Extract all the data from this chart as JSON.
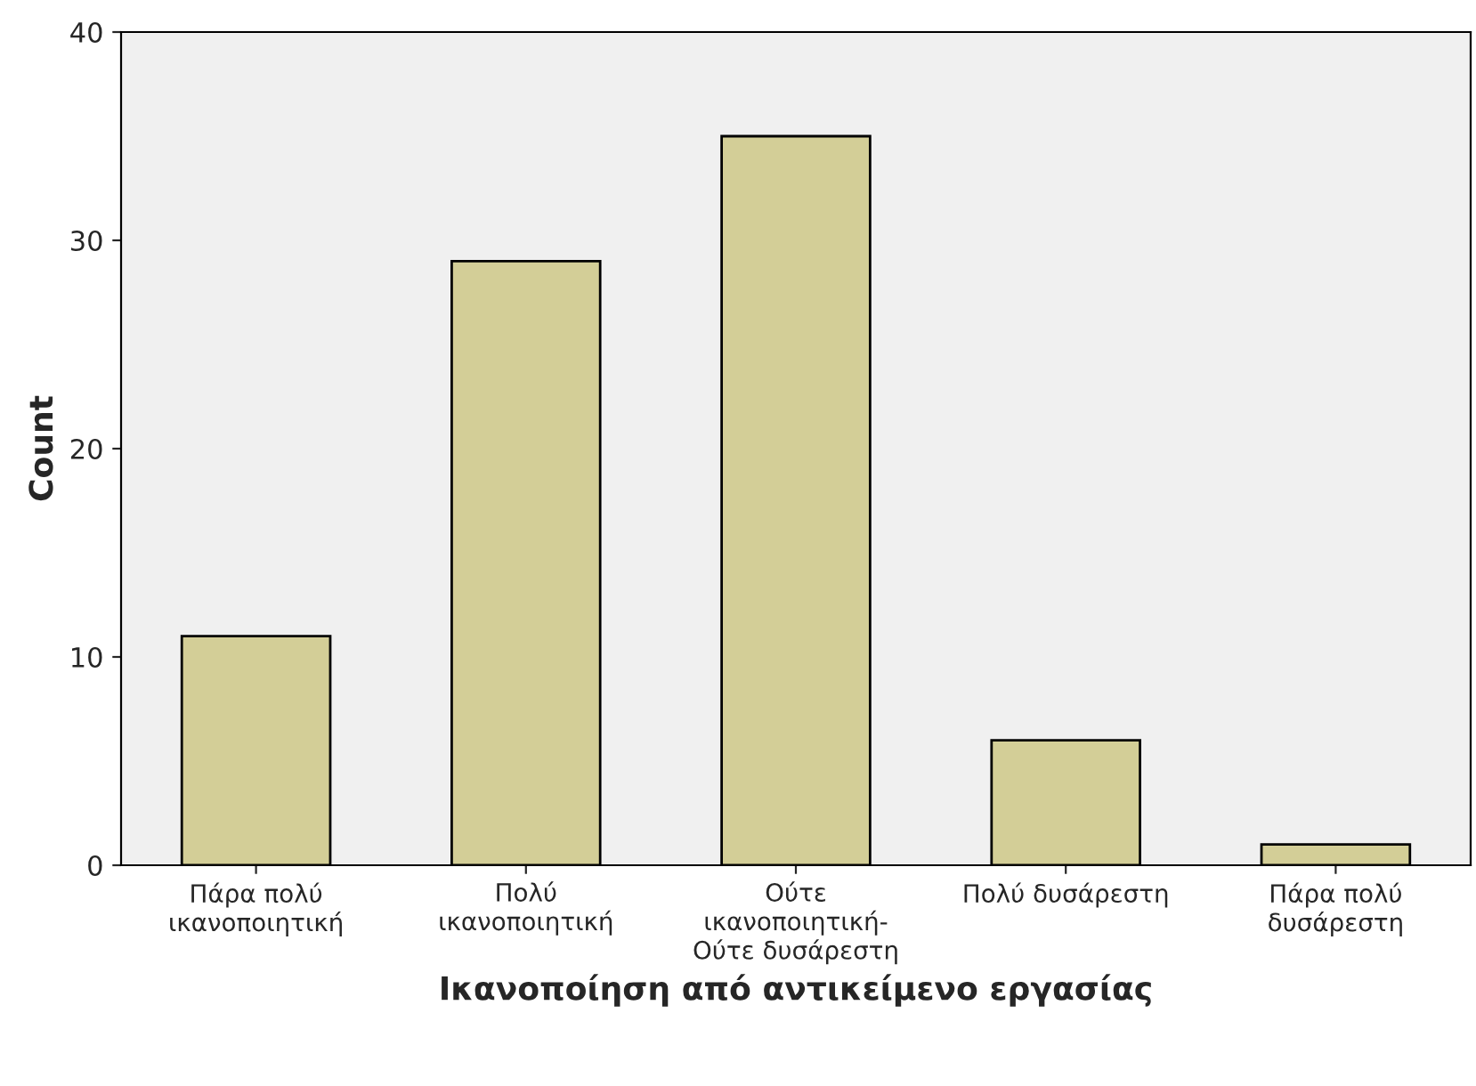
{
  "chart_data": {
    "type": "bar",
    "xlabel": "Ικανοποίηση από αντικείμενο εργασίας",
    "ylabel": "Count",
    "categories": [
      "Πάρα πολύ\nικανοποιητική",
      "Πολύ\nικανοποιητική",
      "Ούτε\nικανοποιητική-\nΟύτε δυσάρεστη",
      "Πολύ δυσάρεστη",
      "Πάρα πολύ\nδυσάρεστη"
    ],
    "values": [
      11,
      29,
      35,
      6,
      1
    ],
    "color": "#d3ce97",
    "ylim": [
      0,
      40
    ],
    "yticks": [
      0,
      10,
      20,
      30,
      40
    ],
    "grid": false,
    "legend": false
  }
}
